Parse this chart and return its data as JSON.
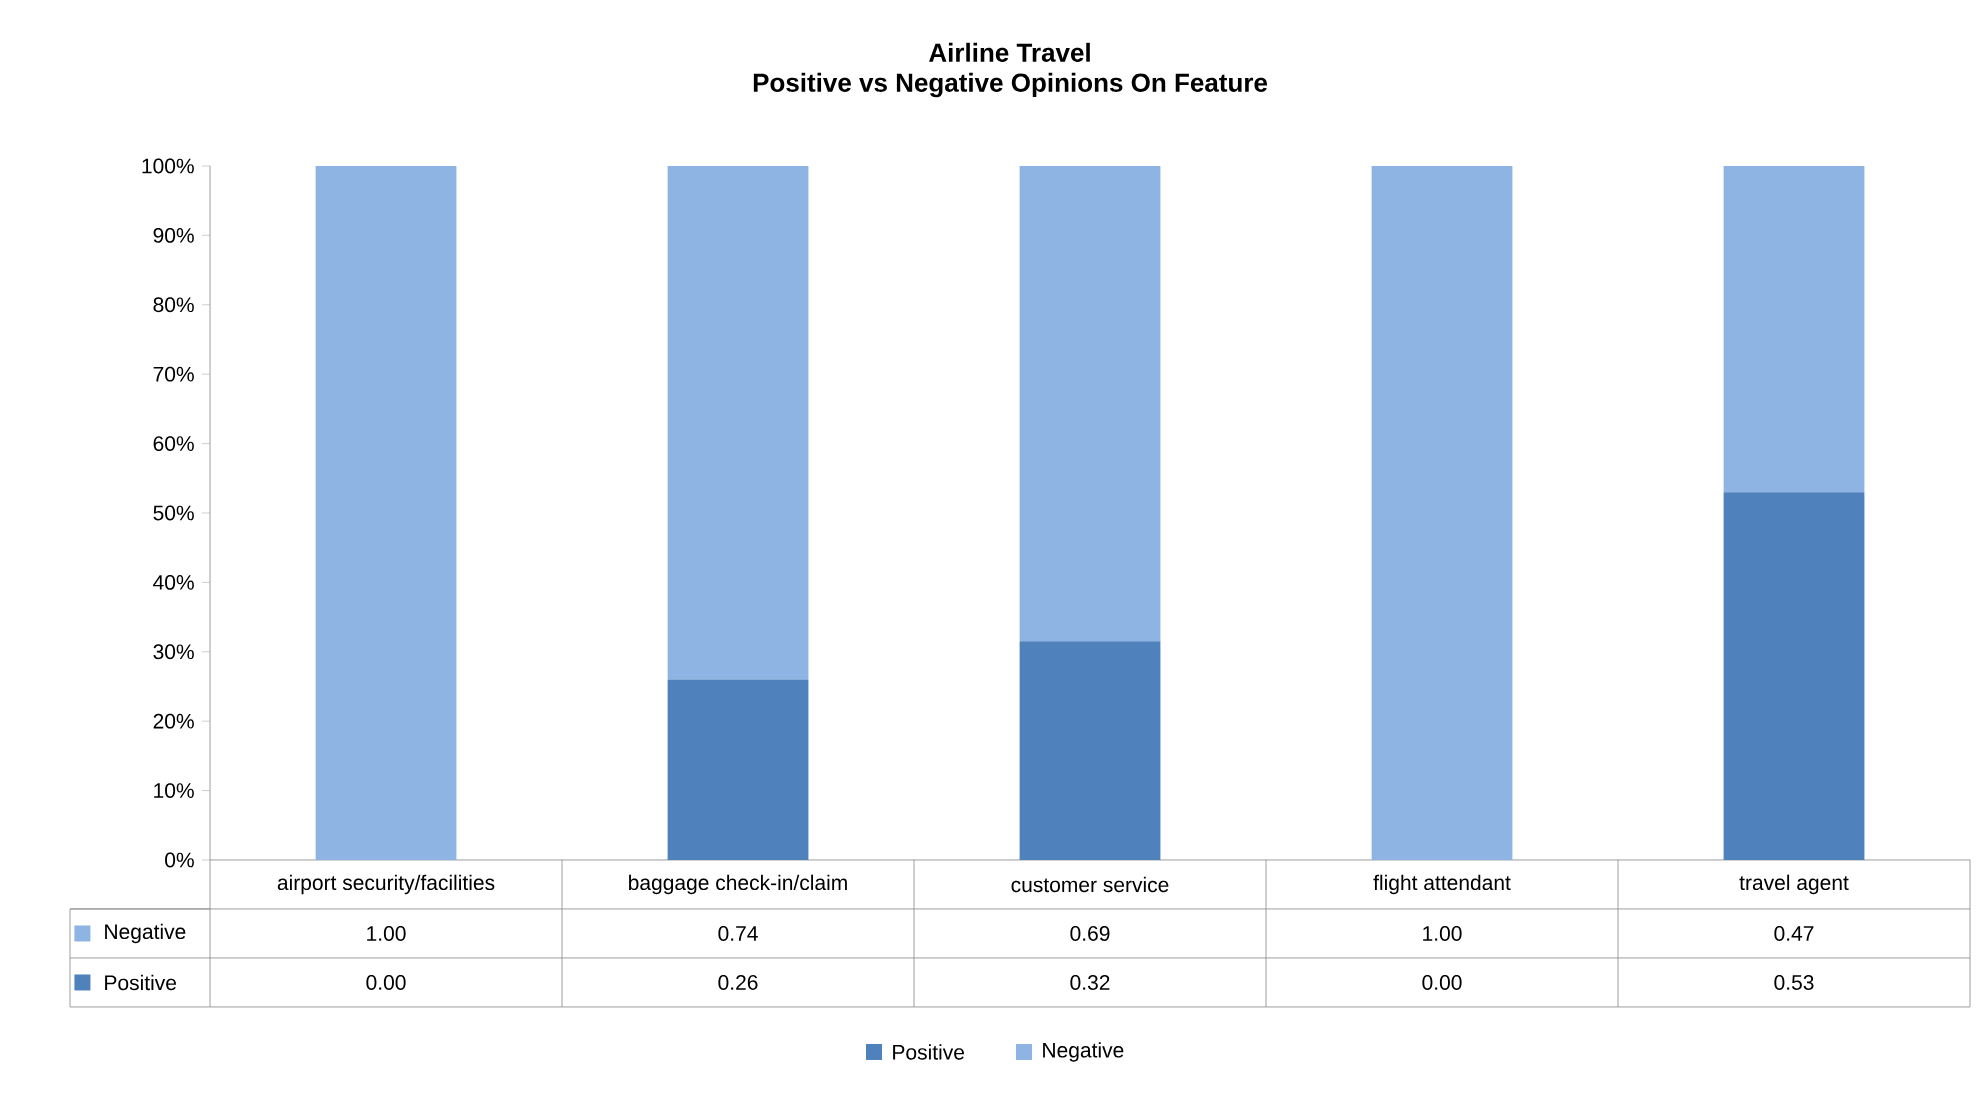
{
  "chart_data": {
    "type": "bar",
    "stacked": true,
    "title": "Airline Travel",
    "subtitle": "Positive vs Negative Opinions On Feature",
    "categories": [
      "airport security/facilities",
      "baggage check-in/claim",
      "customer service",
      "flight attendant",
      "travel agent"
    ],
    "series": [
      {
        "name": "Positive",
        "color": "#4f81bd",
        "values": [
          0.0,
          0.26,
          0.315,
          0.0,
          0.53
        ],
        "value_labels": [
          "0.00",
          "0.26",
          "0.32",
          "0.00",
          "0.53"
        ]
      },
      {
        "name": "Negative",
        "color": "#8eb4e3",
        "values": [
          1.0,
          0.74,
          0.685,
          1.0,
          0.47
        ],
        "value_labels": [
          "1.00",
          "0.74",
          "0.69",
          "1.00",
          "0.47"
        ]
      }
    ],
    "ylim": [
      0,
      1
    ],
    "yticks": [
      {
        "value": 0,
        "label": "0%"
      },
      {
        "value": 0.1,
        "label": "10%"
      },
      {
        "value": 0.2,
        "label": "20%"
      },
      {
        "value": 0.3,
        "label": "30%"
      },
      {
        "value": 0.4,
        "label": "40%"
      },
      {
        "value": 0.5,
        "label": "50%"
      },
      {
        "value": 0.6,
        "label": "60%"
      },
      {
        "value": 0.7,
        "label": "70%"
      },
      {
        "value": 0.8,
        "label": "80%"
      },
      {
        "value": 0.9,
        "label": "90%"
      },
      {
        "value": 1,
        "label": "100%"
      }
    ],
    "legend": "bottom"
  }
}
